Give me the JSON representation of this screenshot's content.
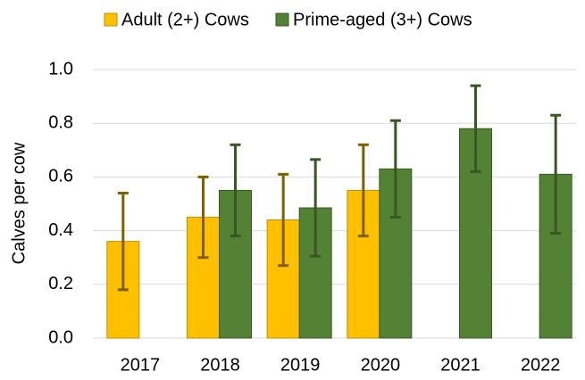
{
  "chart_data": {
    "type": "bar",
    "y_label": "Calves per cow",
    "categories": [
      "2017",
      "2018",
      "2019",
      "2020",
      "2021",
      "2022"
    ],
    "series": [
      {
        "name": "Adult (2+) Cows",
        "color": "#ffc000",
        "edge_color": "#bf9000",
        "error_color": "#7f6000",
        "values": [
          0.36,
          0.45,
          0.44,
          0.55,
          null,
          null
        ],
        "errors": [
          0.18,
          0.15,
          0.17,
          0.17,
          null,
          null
        ]
      },
      {
        "name": "Prime-aged (3+) Cows",
        "color": "#548235",
        "edge_color": "#385723",
        "error_color": "#385723",
        "values": [
          null,
          0.55,
          0.485,
          0.63,
          0.78,
          0.61
        ],
        "errors": [
          null,
          0.17,
          0.18,
          0.18,
          0.16,
          0.22
        ]
      }
    ],
    "ylim": [
      0,
      1.0
    ],
    "yticks": [
      {
        "value": 0,
        "label": "0.0"
      },
      {
        "value": 0.2,
        "label": "0.2"
      },
      {
        "value": 0.4,
        "label": "0.4"
      },
      {
        "value": 0.6,
        "label": "0.6"
      },
      {
        "value": 0.8,
        "label": "0.8"
      },
      {
        "value": 1.0,
        "label": "1.0"
      }
    ],
    "grid": true
  }
}
